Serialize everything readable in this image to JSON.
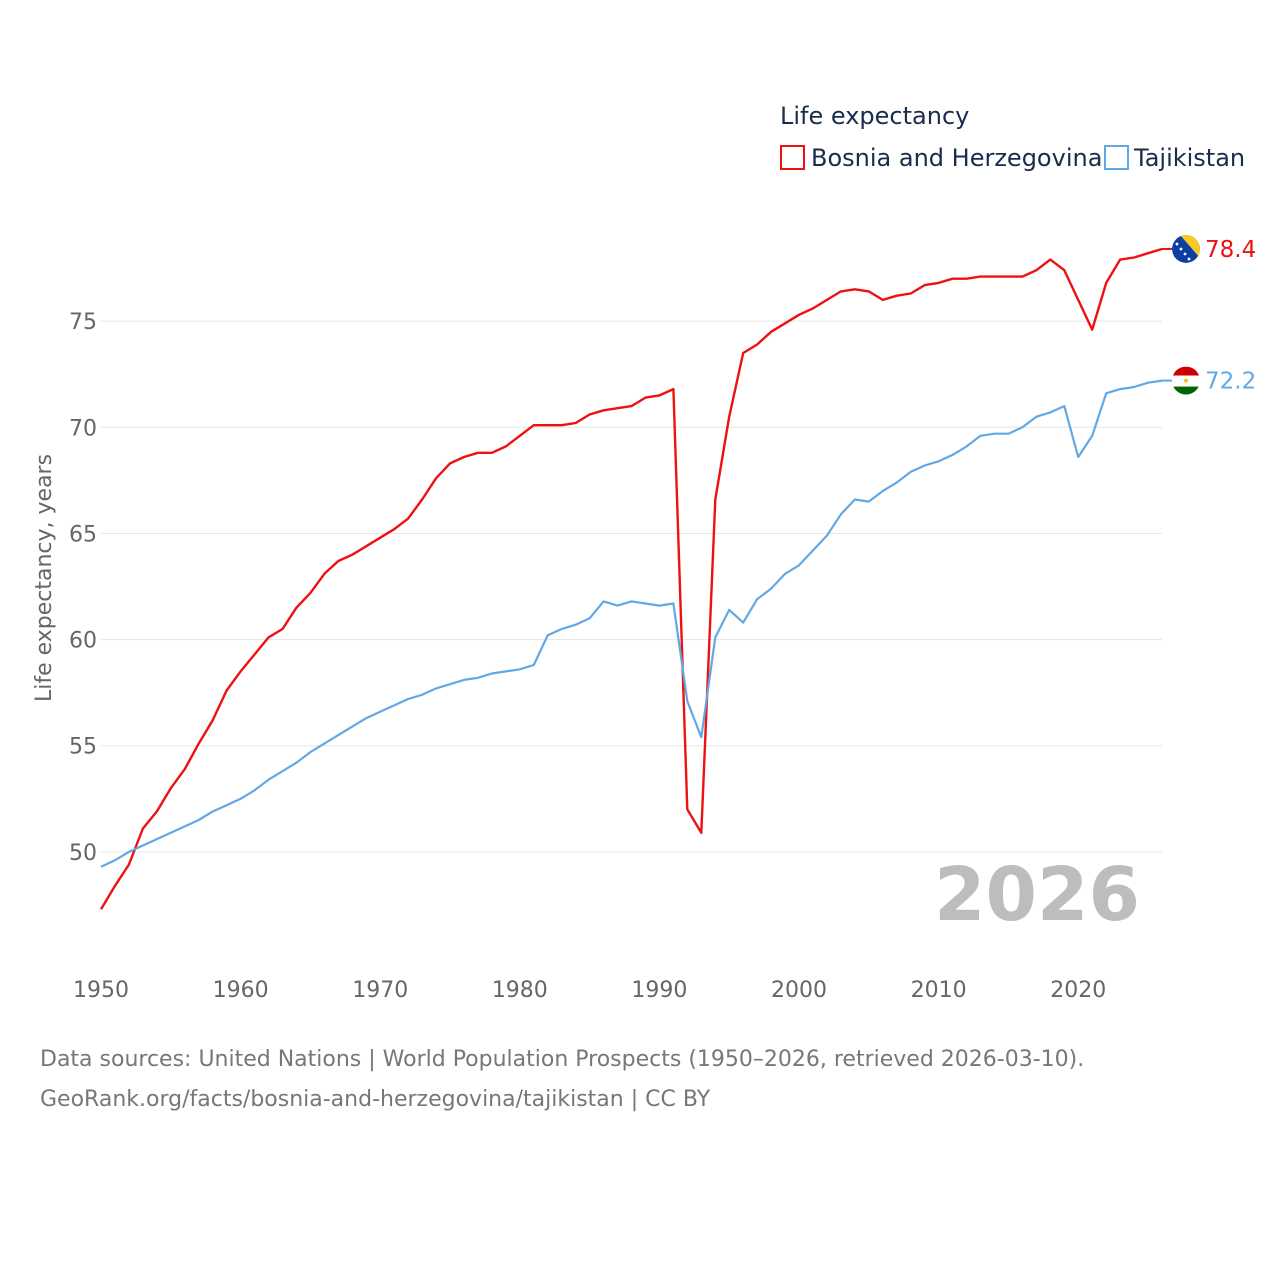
{
  "chart_data": {
    "type": "line",
    "legend_title": "Life expectancy",
    "ylabel": "Life expectancy, years",
    "xlabel": "",
    "xlim": [
      1950,
      2026
    ],
    "ylim": [
      45,
      80
    ],
    "x_ticks": [
      1950,
      1960,
      1970,
      1980,
      1990,
      2000,
      2010,
      2020
    ],
    "y_ticks": [
      50,
      55,
      60,
      65,
      70,
      75
    ],
    "year_stamp": "2026",
    "legend_position": "top-right",
    "grid": true,
    "x": [
      1950,
      1951,
      1952,
      1953,
      1954,
      1955,
      1956,
      1957,
      1958,
      1959,
      1960,
      1961,
      1962,
      1963,
      1964,
      1965,
      1966,
      1967,
      1968,
      1969,
      1970,
      1971,
      1972,
      1973,
      1974,
      1975,
      1976,
      1977,
      1978,
      1979,
      1980,
      1981,
      1982,
      1983,
      1984,
      1985,
      1986,
      1987,
      1988,
      1989,
      1990,
      1991,
      1992,
      1993,
      1994,
      1995,
      1996,
      1997,
      1998,
      1999,
      2000,
      2001,
      2002,
      2003,
      2004,
      2005,
      2006,
      2007,
      2008,
      2009,
      2010,
      2011,
      2012,
      2013,
      2014,
      2015,
      2016,
      2017,
      2018,
      2019,
      2020,
      2021,
      2022,
      2023,
      2024,
      2025,
      2026
    ],
    "series": [
      {
        "name": "Bosnia and Herzegovina",
        "color": "#ee1111",
        "end_label": "78.4",
        "flag": "bosnia-flag-icon",
        "values": [
          47.3,
          48.4,
          49.4,
          51.1,
          51.9,
          53.0,
          53.9,
          55.1,
          56.2,
          57.6,
          58.5,
          59.3,
          60.1,
          60.5,
          61.5,
          62.2,
          63.1,
          63.7,
          64.0,
          64.4,
          64.8,
          65.2,
          65.7,
          66.6,
          67.6,
          68.3,
          68.6,
          68.8,
          68.8,
          69.1,
          69.6,
          70.1,
          70.1,
          70.1,
          70.2,
          70.6,
          70.8,
          70.9,
          71.0,
          71.4,
          71.5,
          71.8,
          52.0,
          50.9,
          66.6,
          70.5,
          73.5,
          73.9,
          74.5,
          74.9,
          75.3,
          75.6,
          76.0,
          76.4,
          76.5,
          76.4,
          76.0,
          76.2,
          76.3,
          76.7,
          76.8,
          77.0,
          77.0,
          77.1,
          77.1,
          77.1,
          77.1,
          77.4,
          77.9,
          77.4,
          76.0,
          74.6,
          76.8,
          77.9,
          78.0,
          78.2,
          78.4
        ]
      },
      {
        "name": "Tajikistan",
        "color": "#62a8e5",
        "end_label": "72.2",
        "flag": "tajikistan-flag-icon",
        "values": [
          49.3,
          49.6,
          50.0,
          50.3,
          50.6,
          50.9,
          51.2,
          51.5,
          51.9,
          52.2,
          52.5,
          52.9,
          53.4,
          53.8,
          54.2,
          54.7,
          55.1,
          55.5,
          55.9,
          56.3,
          56.6,
          56.9,
          57.2,
          57.4,
          57.7,
          57.9,
          58.1,
          58.2,
          58.4,
          58.5,
          58.6,
          58.8,
          60.2,
          60.5,
          60.7,
          61.0,
          61.8,
          61.6,
          61.8,
          61.7,
          61.6,
          61.7,
          57.1,
          55.4,
          60.1,
          61.4,
          60.8,
          61.9,
          62.4,
          63.1,
          63.5,
          64.2,
          64.9,
          65.9,
          66.6,
          66.5,
          67.0,
          67.4,
          67.9,
          68.2,
          68.4,
          68.7,
          69.1,
          69.6,
          69.7,
          69.7,
          70.0,
          70.5,
          70.7,
          71.0,
          68.6,
          69.6,
          71.6,
          71.8,
          71.9,
          72.1,
          72.2
        ]
      }
    ]
  },
  "source_line1": "Data sources: United Nations | World Population Prospects (1950–2026, retrieved 2026-03-10).",
  "source_line2": "GeoRank.org/facts/bosnia-and-herzegovina/tajikistan | CC BY"
}
